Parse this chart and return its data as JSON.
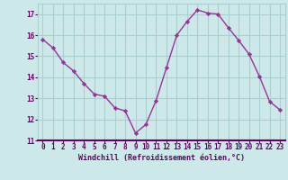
{
  "x": [
    0,
    1,
    2,
    3,
    4,
    5,
    6,
    7,
    8,
    9,
    10,
    11,
    12,
    13,
    14,
    15,
    16,
    17,
    18,
    19,
    20,
    21,
    22,
    23
  ],
  "y": [
    15.8,
    15.4,
    14.7,
    14.3,
    13.7,
    13.2,
    13.1,
    12.55,
    12.4,
    11.35,
    11.75,
    12.9,
    14.45,
    16.0,
    16.65,
    17.2,
    17.05,
    17.0,
    16.35,
    15.75,
    15.1,
    14.05,
    12.85,
    12.45
  ],
  "line_color": "#993399",
  "marker": "D",
  "marker_size": 2.2,
  "bg_color": "#cce8e8",
  "grid_color": "#aacfcf",
  "tick_color": "#660066",
  "spine_color": "#660066",
  "xlabel": "Windchill (Refroidissement éolien,°C)",
  "ylim": [
    11,
    17.5
  ],
  "xlim": [
    -0.5,
    23.5
  ],
  "yticks": [
    11,
    12,
    13,
    14,
    15,
    16,
    17
  ],
  "xticks": [
    0,
    1,
    2,
    3,
    4,
    5,
    6,
    7,
    8,
    9,
    10,
    11,
    12,
    13,
    14,
    15,
    16,
    17,
    18,
    19,
    20,
    21,
    22,
    23
  ],
  "tick_fontsize": 5.5,
  "xlabel_fontsize": 6.0
}
